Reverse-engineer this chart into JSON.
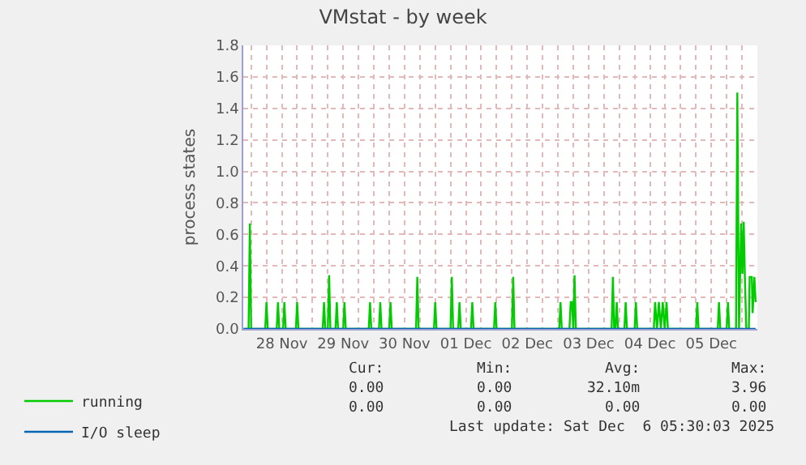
{
  "chart_data": {
    "type": "line",
    "title": "VMstat - by week",
    "ylabel": "process states",
    "xlim": [
      "2025-11-27T21:00",
      "2025-12-06T06:00"
    ],
    "xticks": [
      {
        "value": "2025-11-28T00:00",
        "label": null
      },
      {
        "value": "2025-11-28T06:00",
        "label": null
      },
      {
        "value": "2025-11-28T12:00",
        "label": "28 Nov"
      },
      {
        "value": "2025-11-28T18:00",
        "label": null
      },
      {
        "value": "2025-11-29T00:00",
        "label": null
      },
      {
        "value": "2025-11-29T06:00",
        "label": null
      },
      {
        "value": "2025-11-29T12:00",
        "label": "29 Nov"
      },
      {
        "value": "2025-11-29T18:00",
        "label": null
      },
      {
        "value": "2025-11-30T00:00",
        "label": null
      },
      {
        "value": "2025-11-30T06:00",
        "label": null
      },
      {
        "value": "2025-11-30T12:00",
        "label": "30 Nov"
      },
      {
        "value": "2025-11-30T18:00",
        "label": null
      },
      {
        "value": "2025-12-01T00:00",
        "label": null
      },
      {
        "value": "2025-12-01T06:00",
        "label": null
      },
      {
        "value": "2025-12-01T12:00",
        "label": "01 Dec"
      },
      {
        "value": "2025-12-01T18:00",
        "label": null
      },
      {
        "value": "2025-12-02T00:00",
        "label": null
      },
      {
        "value": "2025-12-02T06:00",
        "label": null
      },
      {
        "value": "2025-12-02T12:00",
        "label": "02 Dec"
      },
      {
        "value": "2025-12-02T18:00",
        "label": null
      },
      {
        "value": "2025-12-03T00:00",
        "label": null
      },
      {
        "value": "2025-12-03T06:00",
        "label": null
      },
      {
        "value": "2025-12-03T12:00",
        "label": "03 Dec"
      },
      {
        "value": "2025-12-03T18:00",
        "label": null
      },
      {
        "value": "2025-12-04T00:00",
        "label": null
      },
      {
        "value": "2025-12-04T06:00",
        "label": null
      },
      {
        "value": "2025-12-04T12:00",
        "label": "04 Dec"
      },
      {
        "value": "2025-12-04T18:00",
        "label": null
      },
      {
        "value": "2025-12-05T00:00",
        "label": null
      },
      {
        "value": "2025-12-05T06:00",
        "label": null
      },
      {
        "value": "2025-12-05T12:00",
        "label": "05 Dec"
      },
      {
        "value": "2025-12-05T18:00",
        "label": null
      },
      {
        "value": "2025-12-06T00:00",
        "label": null
      }
    ],
    "ylim": [
      0,
      1.8
    ],
    "yticks": [
      {
        "value": 0,
        "label": "0.0"
      },
      0.2,
      0.4,
      0.6,
      0.8,
      {
        "value": 1,
        "label": "1.0"
      },
      1.2,
      1.4,
      1.6,
      1.8
    ],
    "grid": true,
    "legend": "bottom",
    "marker": "none",
    "line_style": "solid",
    "series": [
      {
        "name": "running",
        "color": "#00cc00",
        "x": [
          "2025-11-27T21:00",
          "2025-11-27T23:00",
          "2025-11-27T23:30",
          "2025-11-28T00:00",
          "2025-11-28T05:30",
          "2025-11-28T06:00",
          "2025-11-28T06:30",
          "2025-11-28T10:00",
          "2025-11-28T10:30",
          "2025-11-28T11:00",
          "2025-11-28T12:30",
          "2025-11-28T13:00",
          "2025-11-28T13:30",
          "2025-11-28T17:30",
          "2025-11-28T18:00",
          "2025-11-28T18:30",
          "2025-11-29T04:00",
          "2025-11-29T04:30",
          "2025-11-29T05:00",
          "2025-11-29T06:00",
          "2025-11-29T06:30",
          "2025-11-29T07:00",
          "2025-11-29T09:00",
          "2025-11-29T09:30",
          "2025-11-29T10:00",
          "2025-11-29T12:00",
          "2025-11-29T12:30",
          "2025-11-29T13:00",
          "2025-11-29T22:00",
          "2025-11-29T22:30",
          "2025-11-29T23:00",
          "2025-11-30T02:00",
          "2025-11-30T02:30",
          "2025-11-30T03:00",
          "2025-11-30T06:00",
          "2025-11-30T06:30",
          "2025-11-30T07:00",
          "2025-11-30T16:30",
          "2025-11-30T17:00",
          "2025-11-30T17:30",
          "2025-11-30T23:30",
          "2025-12-01T00:00",
          "2025-12-01T00:30",
          "2025-12-01T06:00",
          "2025-12-01T06:30",
          "2025-12-01T07:00",
          "2025-12-01T09:00",
          "2025-12-01T09:30",
          "2025-12-01T10:00",
          "2025-12-01T14:00",
          "2025-12-01T14:30",
          "2025-12-01T15:00",
          "2025-12-01T23:00",
          "2025-12-01T23:30",
          "2025-12-02T00:00",
          "2025-12-02T06:00",
          "2025-12-02T06:30",
          "2025-12-02T07:00",
          "2025-12-03T00:30",
          "2025-12-03T01:00",
          "2025-12-03T01:30",
          "2025-12-03T04:30",
          "2025-12-03T05:00",
          "2025-12-03T05:30",
          "2025-12-03T06:00",
          "2025-12-03T06:30",
          "2025-12-03T07:00",
          "2025-12-03T21:00",
          "2025-12-03T21:30",
          "2025-12-03T22:00",
          "2025-12-03T22:30",
          "2025-12-03T23:00",
          "2025-12-03T23:30",
          "2025-12-04T02:00",
          "2025-12-04T02:30",
          "2025-12-04T03:00",
          "2025-12-04T06:00",
          "2025-12-04T06:30",
          "2025-12-04T07:00",
          "2025-12-04T13:30",
          "2025-12-04T14:00",
          "2025-12-04T14:45",
          "2025-12-04T15:30",
          "2025-12-04T16:15",
          "2025-12-04T17:00",
          "2025-12-04T17:45",
          "2025-12-04T18:30",
          "2025-12-04T19:00",
          "2025-12-05T06:00",
          "2025-12-05T06:30",
          "2025-12-05T07:00",
          "2025-12-05T14:30",
          "2025-12-05T15:00",
          "2025-12-05T15:30",
          "2025-12-05T18:00",
          "2025-12-05T18:30",
          "2025-12-05T19:00",
          "2025-12-05T21:40",
          "2025-12-05T22:10",
          "2025-12-05T22:50",
          "2025-12-05T23:40",
          "2025-12-06T00:10",
          "2025-12-06T00:40",
          "2025-12-06T01:10",
          "2025-12-06T01:40",
          "2025-12-06T02:40",
          "2025-12-06T03:00",
          "2025-12-06T03:50",
          "2025-12-06T04:10",
          "2025-12-06T04:50",
          "2025-12-06T05:20"
        ],
        "values": [
          0,
          0,
          0.67,
          0,
          0,
          0.17,
          0,
          0,
          0.17,
          0,
          0,
          0.17,
          0,
          0,
          0.17,
          0,
          0,
          0.17,
          0,
          0,
          0.34,
          0,
          0,
          0.17,
          0,
          0,
          0.17,
          0,
          0,
          0.17,
          0,
          0,
          0.17,
          0,
          0,
          0.17,
          0,
          0,
          0.33,
          0,
          0,
          0.17,
          0,
          0,
          0.33,
          0,
          0,
          0.17,
          0,
          0,
          0.17,
          0,
          0,
          0.17,
          0,
          0,
          0.33,
          0,
          0,
          0.17,
          0,
          0,
          0.17,
          0.17,
          0,
          0.34,
          0,
          0,
          0.33,
          0,
          0,
          0.17,
          0,
          0,
          0.17,
          0,
          0,
          0.17,
          0,
          0,
          0.17,
          0,
          0.17,
          0,
          0.17,
          0,
          0.17,
          0,
          0,
          0.17,
          0,
          0,
          0.17,
          0,
          0,
          0.17,
          0,
          0,
          1.5,
          0,
          0.67,
          0.35,
          0.68,
          0.3,
          0,
          0,
          0.33,
          0.33,
          0.1,
          0.33,
          0.17
        ]
      },
      {
        "name": "I/O sleep",
        "color": "#0066b3",
        "x": [
          "2025-11-27T21:00",
          "2025-12-06T05:20"
        ],
        "values": [
          0,
          0
        ]
      }
    ],
    "annotations": [
      "Cur:",
      "Min:",
      "Avg:",
      "Max:",
      "0.00",
      "0.00",
      "32.10m",
      "3.96",
      "0.00",
      "0.00",
      "0.00",
      "0.00",
      "Last update: Sat Dec  6 05:30:03 2025"
    ]
  }
}
